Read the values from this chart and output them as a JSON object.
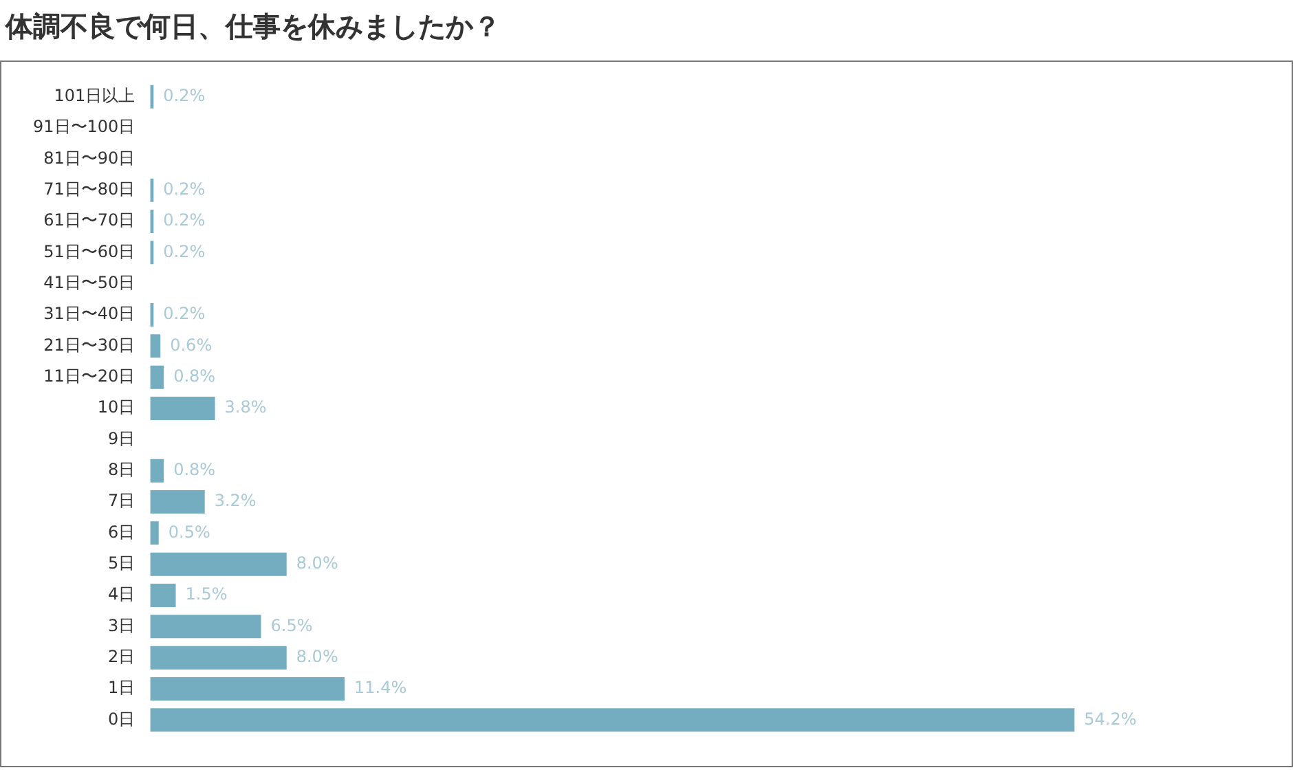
{
  "chart_data": {
    "type": "bar",
    "orientation": "horizontal",
    "title": "体調不良で何日、仕事を休みましたか？",
    "categories": [
      "101日以上",
      "91日〜100日",
      "81日〜90日",
      "71日〜80日",
      "61日〜70日",
      "51日〜60日",
      "41日〜50日",
      "31日〜40日",
      "21日〜30日",
      "11日〜20日",
      "10日",
      "9日",
      "8日",
      "7日",
      "6日",
      "5日",
      "4日",
      "3日",
      "2日",
      "1日",
      "0日"
    ],
    "values": [
      0.2,
      null,
      null,
      0.2,
      0.2,
      0.2,
      null,
      0.2,
      0.6,
      0.8,
      3.8,
      null,
      0.8,
      3.2,
      0.5,
      8.0,
      1.5,
      6.5,
      8.0,
      11.4,
      54.2
    ],
    "value_labels": [
      "0.2%",
      null,
      null,
      "0.2%",
      "0.2%",
      "0.2%",
      null,
      "0.2%",
      "0.6%",
      "0.8%",
      "3.8%",
      null,
      "0.8%",
      "3.2%",
      "0.5%",
      "8.0%",
      "1.5%",
      "6.5%",
      "8.0%",
      "11.4%",
      "54.2%"
    ],
    "color": "#74adc0",
    "grid": false,
    "legend": false,
    "tick_labels": "y"
  }
}
